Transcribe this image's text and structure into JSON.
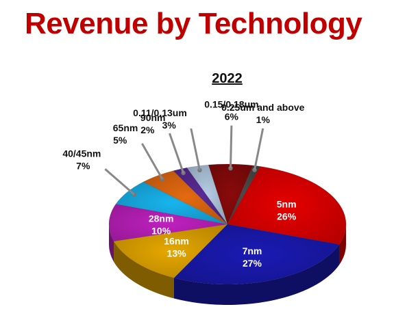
{
  "title": "Revenue by Technology",
  "chart_data": {
    "type": "pie",
    "title": "2022",
    "unit": "%",
    "slices": [
      {
        "label": "5nm",
        "value": 26,
        "value_text": "26%",
        "color": "#e60000"
      },
      {
        "label": "7nm",
        "value": 27,
        "value_text": "27%",
        "color": "#1a1ab4"
      },
      {
        "label": "16nm",
        "value": 13,
        "value_text": "13%",
        "color": "#e6a800"
      },
      {
        "label": "28nm",
        "value": 10,
        "value_text": "10%",
        "color": "#c020c0"
      },
      {
        "label": "40/45nm",
        "value": 7,
        "value_text": "7%",
        "color": "#18b4ee"
      },
      {
        "label": "65nm",
        "value": 5,
        "value_text": "5%",
        "color": "#e56a10"
      },
      {
        "label": "90nm",
        "value": 2,
        "value_text": "2%",
        "color": "#5a2a96"
      },
      {
        "label": "0.11/0.13um",
        "value": 3,
        "value_text": "3%",
        "color": "#b4cce4"
      },
      {
        "label": "0.15/0.18um",
        "value": 6,
        "value_text": "6%",
        "color": "#8a0a0a"
      },
      {
        "label": "0.25um and above",
        "value": 1,
        "value_text": "1%",
        "color": "#4a4a4a"
      }
    ]
  }
}
